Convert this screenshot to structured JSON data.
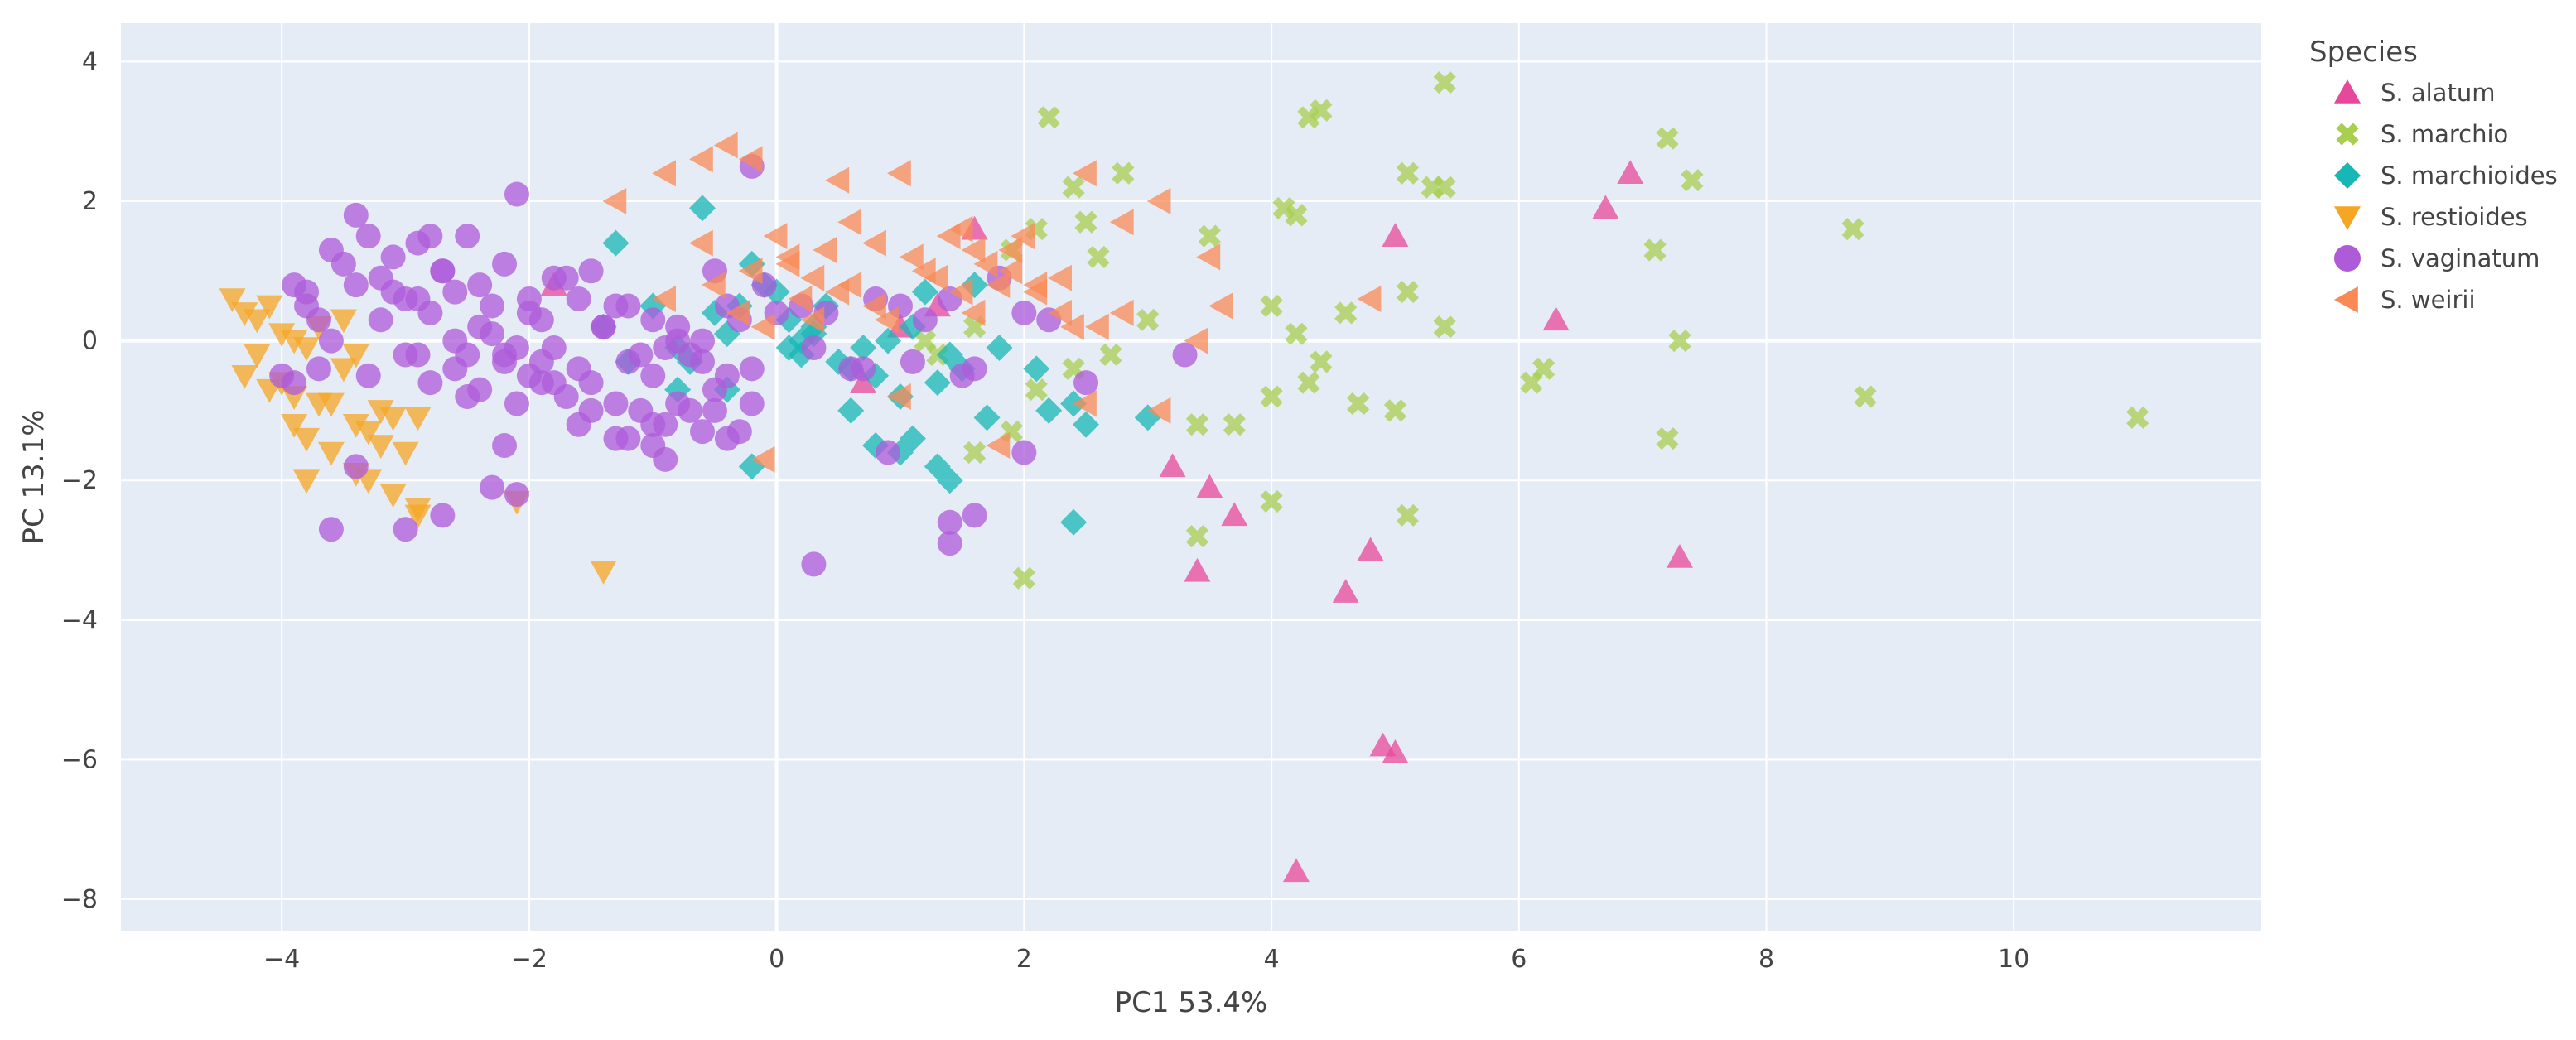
{
  "chart_data": {
    "type": "scatter",
    "xlabel": "PC1 53.4%",
    "ylabel": "PC 13.1%",
    "xlim": [
      -5.3,
      12.0
    ],
    "ylim": [
      -8.45,
      4.55
    ],
    "xticks": [
      -4,
      -2,
      0,
      2,
      4,
      6,
      8,
      10
    ],
    "yticks": [
      -8,
      -6,
      -4,
      -2,
      0,
      2,
      4
    ],
    "xtick_labels": [
      "−4",
      "−2",
      "0",
      "2",
      "4",
      "6",
      "8",
      "10"
    ],
    "ytick_labels": [
      "−8",
      "−6",
      "−4",
      "−2",
      "0",
      "2",
      "4"
    ],
    "grid": true,
    "legend_title": "Species",
    "legend_position": "right",
    "colors": {
      "background": "#E5ECF6",
      "S. alatum": "#E8489B",
      "S. marchio": "#A8CF4F",
      "S. marchioides": "#17B7B5",
      "S. restioides": "#F5A623",
      "S. vaginatum": "#AE5BD9",
      "S. weirii": "#F98A55"
    },
    "series": [
      {
        "name": "S. alatum",
        "marker": "triangle-up",
        "x": [
          1.6,
          6.9,
          6.7,
          6.3,
          5.0,
          3.2,
          3.5,
          3.7,
          3.4,
          4.6,
          4.8,
          4.9,
          5.0,
          7.3,
          4.2,
          1.3,
          1.0,
          0.7,
          -1.8
        ],
        "y": [
          1.6,
          2.4,
          1.9,
          0.3,
          1.5,
          -1.8,
          -2.1,
          -2.5,
          -3.3,
          -3.6,
          -3.0,
          -5.8,
          -5.9,
          -3.1,
          -7.6,
          0.5,
          0.2,
          -0.6,
          0.8
        ]
      },
      {
        "name": "S. marchio",
        "marker": "x",
        "x": [
          2.2,
          5.4,
          4.3,
          4.4,
          7.2,
          7.4,
          5.1,
          5.3,
          5.4,
          4.1,
          4.2,
          3.5,
          2.8,
          2.4,
          2.1,
          1.9,
          2.5,
          2.6,
          3.0,
          4.0,
          4.2,
          4.6,
          5.1,
          5.4,
          7.1,
          8.7,
          8.8,
          6.1,
          6.2,
          7.3,
          11.0,
          7.2,
          5.0,
          4.7,
          4.4,
          4.3,
          4.0,
          3.7,
          3.4,
          3.4,
          2.7,
          2.4,
          2.1,
          1.9,
          1.6,
          1.3,
          5.1,
          4.0,
          1.6,
          1.2,
          2.0
        ],
        "y": [
          3.2,
          3.7,
          3.2,
          3.3,
          2.9,
          2.3,
          2.4,
          2.2,
          2.2,
          1.9,
          1.8,
          1.5,
          2.4,
          2.2,
          1.6,
          1.3,
          1.7,
          1.2,
          0.3,
          0.5,
          0.1,
          0.4,
          0.7,
          0.2,
          1.3,
          1.6,
          -0.8,
          -0.6,
          -0.4,
          0.0,
          -1.1,
          -1.4,
          -1.0,
          -0.9,
          -0.3,
          -0.6,
          -0.8,
          -1.2,
          -1.2,
          -2.8,
          -0.2,
          -0.4,
          -0.7,
          -1.3,
          -1.6,
          -0.2,
          -2.5,
          -2.3,
          0.2,
          0.0,
          -3.4
        ]
      },
      {
        "name": "S. marchioides",
        "marker": "diamond",
        "x": [
          -1.3,
          -0.6,
          -1.4,
          -1.2,
          -1.0,
          -0.8,
          -0.7,
          -0.5,
          -0.4,
          -0.3,
          -0.2,
          -0.1,
          0.0,
          0.1,
          0.2,
          0.2,
          0.3,
          0.4,
          0.5,
          0.6,
          0.7,
          0.8,
          0.9,
          1.0,
          1.1,
          1.2,
          1.3,
          1.4,
          1.5,
          1.6,
          1.7,
          1.8,
          2.1,
          2.2,
          2.4,
          2.5,
          3.0,
          -0.2,
          1.0,
          0.6,
          0.3,
          -0.8,
          1.1,
          1.4,
          2.4,
          -0.4,
          0.1,
          0.8,
          1.3
        ],
        "y": [
          1.4,
          1.9,
          0.2,
          -0.3,
          0.5,
          -0.1,
          -0.3,
          0.4,
          0.1,
          0.5,
          1.1,
          0.8,
          0.7,
          0.3,
          0.0,
          -0.2,
          0.1,
          0.5,
          -0.3,
          -0.4,
          -0.1,
          -0.5,
          0.0,
          -0.8,
          0.2,
          0.7,
          -0.6,
          -0.2,
          -0.4,
          0.8,
          -1.1,
          -0.1,
          -0.4,
          -1.0,
          -0.9,
          -1.2,
          -1.1,
          -1.8,
          -1.6,
          -1.0,
          0.2,
          -0.7,
          -1.4,
          -2.0,
          -2.6,
          -0.7,
          -0.1,
          -1.5,
          -1.8
        ]
      },
      {
        "name": "S. restioides",
        "marker": "triangle-down",
        "x": [
          -4.4,
          -4.3,
          -4.2,
          -4.1,
          -4.0,
          -3.9,
          -3.8,
          -4.3,
          -4.1,
          -3.9,
          -3.7,
          -3.6,
          -3.5,
          -3.4,
          -3.3,
          -3.2,
          -3.1,
          -3.0,
          -2.9,
          -3.8,
          -3.6,
          -3.4,
          -3.3,
          -3.1,
          -2.9,
          -2.1,
          -1.4,
          -3.7,
          -3.5,
          -3.8,
          -4.0,
          -4.2,
          -3.9,
          -3.4,
          -3.2,
          -2.9
        ],
        "y": [
          0.6,
          0.4,
          0.3,
          0.5,
          0.1,
          0.0,
          -0.1,
          -0.5,
          -0.7,
          -0.8,
          -0.9,
          -0.9,
          -0.4,
          -1.2,
          -1.3,
          -1.5,
          -1.1,
          -1.6,
          -2.5,
          -1.4,
          -1.6,
          -1.9,
          -2.0,
          -2.2,
          -2.4,
          -2.3,
          -3.3,
          0.2,
          0.3,
          -2.0,
          -0.6,
          -0.2,
          -1.2,
          -0.2,
          -1.0,
          -1.1
        ]
      },
      {
        "name": "S. vaginatum",
        "marker": "circle",
        "x": [
          -4.0,
          -3.9,
          -3.8,
          -3.7,
          -3.6,
          -3.5,
          -3.4,
          -3.3,
          -3.2,
          -3.1,
          -3.0,
          -2.9,
          -2.8,
          -2.7,
          -2.6,
          -2.5,
          -2.4,
          -2.3,
          -2.2,
          -2.1,
          -2.0,
          -1.9,
          -1.8,
          -1.7,
          -1.6,
          -1.5,
          -1.4,
          -1.3,
          -1.2,
          -1.1,
          -1.0,
          -0.9,
          -0.8,
          -0.7,
          -0.6,
          -0.5,
          -0.4,
          -0.3,
          -0.2,
          -0.1,
          0.0,
          0.2,
          0.4,
          0.6,
          0.8,
          1.0,
          1.2,
          1.4,
          1.6,
          1.8,
          2.0,
          2.2,
          2.5,
          3.3,
          -3.4,
          -3.1,
          -2.8,
          -2.6,
          -2.4,
          -2.2,
          -2.0,
          -1.8,
          -1.6,
          -1.4,
          -1.2,
          -1.0,
          -0.8,
          -0.6,
          -0.4,
          -0.2,
          0.3,
          0.7,
          1.1,
          1.5,
          -3.6,
          -3.2,
          -2.9,
          -2.7,
          -2.5,
          -2.3,
          -2.1,
          -1.9,
          -1.7,
          -1.5,
          -1.3,
          -1.1,
          -0.9,
          -0.7,
          -0.5,
          -0.3,
          -2.9,
          -2.5,
          -2.1,
          -1.6,
          -1.3,
          -1.0,
          -0.6,
          0.3,
          1.4,
          2.0,
          -3.7,
          -3.3,
          -3.0,
          -2.8,
          -2.6,
          -2.4,
          -2.2,
          -2.0,
          -1.8,
          -1.5,
          -1.2,
          -0.9,
          -0.4,
          -0.2,
          0.9,
          1.6,
          1.4,
          -2.1,
          -3.4,
          -3.6,
          -1.0,
          -0.5,
          -0.8,
          -2.3,
          -2.7,
          -3.0,
          -3.8,
          -3.9,
          -2.2,
          -1.9
        ],
        "y": [
          -0.5,
          -0.6,
          0.7,
          0.3,
          1.3,
          1.1,
          1.8,
          1.5,
          0.9,
          1.2,
          0.6,
          1.4,
          1.5,
          1.0,
          0.7,
          1.5,
          0.8,
          0.5,
          1.1,
          2.1,
          0.6,
          0.3,
          0.9,
          0.9,
          0.6,
          1.0,
          0.2,
          0.5,
          0.5,
          -0.2,
          0.3,
          -0.1,
          0.2,
          -0.2,
          0.0,
          1.0,
          0.5,
          0.3,
          2.5,
          0.8,
          0.4,
          0.5,
          0.4,
          -0.4,
          0.6,
          0.5,
          0.3,
          0.6,
          -0.4,
          0.9,
          0.4,
          0.3,
          -0.6,
          -0.2,
          0.8,
          0.7,
          0.4,
          0.0,
          0.2,
          -0.2,
          0.4,
          -0.1,
          -0.4,
          0.2,
          -0.3,
          -0.5,
          0.0,
          -0.3,
          -0.5,
          -0.4,
          -0.1,
          -0.4,
          -0.3,
          -0.5,
          0.0,
          0.3,
          0.6,
          1.0,
          -0.2,
          0.1,
          -0.1,
          -0.6,
          -0.8,
          -0.6,
          -0.9,
          -1.0,
          -1.2,
          -1.0,
          -0.7,
          -1.3,
          -0.2,
          -0.8,
          -0.9,
          -1.2,
          -1.4,
          -1.5,
          -1.3,
          -3.2,
          -2.9,
          -1.6,
          -0.4,
          -0.5,
          -0.2,
          -0.6,
          -0.4,
          -0.7,
          -0.3,
          -0.5,
          -0.6,
          -1.0,
          -1.4,
          -1.7,
          -1.4,
          -0.9,
          -1.6,
          -2.5,
          -2.6,
          -2.2,
          -1.8,
          -2.7,
          -1.2,
          -1.0,
          -0.9,
          -2.1,
          -2.5,
          -2.7,
          0.5,
          0.8,
          -1.5,
          -0.3
        ]
      },
      {
        "name": "S. weirii",
        "marker": "triangle-left",
        "x": [
          -1.3,
          -0.9,
          -0.6,
          -0.4,
          -0.2,
          0.0,
          0.1,
          0.3,
          0.5,
          0.6,
          0.8,
          1.0,
          1.2,
          1.4,
          1.5,
          1.6,
          1.7,
          1.8,
          1.9,
          2.0,
          2.1,
          2.3,
          2.5,
          2.6,
          2.8,
          3.1,
          3.5,
          3.6,
          4.8,
          3.4,
          2.5,
          1.8,
          1.0,
          0.8,
          0.4,
          0.1,
          -0.2,
          -0.5,
          0.3,
          0.6,
          1.1,
          1.3,
          1.6,
          1.9,
          2.1,
          2.4,
          2.8,
          3.1,
          -0.1,
          0.9,
          0.2,
          -0.6,
          -0.9,
          -0.3,
          1.5,
          2.3,
          -0.1,
          0.5
        ],
        "y": [
          2.0,
          2.4,
          2.6,
          2.8,
          2.6,
          1.5,
          1.2,
          0.9,
          2.3,
          1.7,
          1.4,
          2.4,
          1.0,
          1.5,
          1.6,
          1.3,
          1.1,
          0.8,
          1.3,
          1.5,
          0.7,
          0.4,
          2.4,
          0.2,
          0.4,
          2.0,
          1.2,
          0.5,
          0.6,
          0.0,
          -0.9,
          -1.5,
          -0.8,
          0.5,
          1.3,
          1.1,
          1.0,
          0.8,
          0.3,
          0.8,
          1.2,
          0.9,
          0.4,
          1.0,
          0.8,
          0.2,
          1.7,
          -1.0,
          0.2,
          0.3,
          0.6,
          1.4,
          0.6,
          0.4,
          0.7,
          0.9,
          -1.7,
          0.7
        ]
      }
    ]
  }
}
